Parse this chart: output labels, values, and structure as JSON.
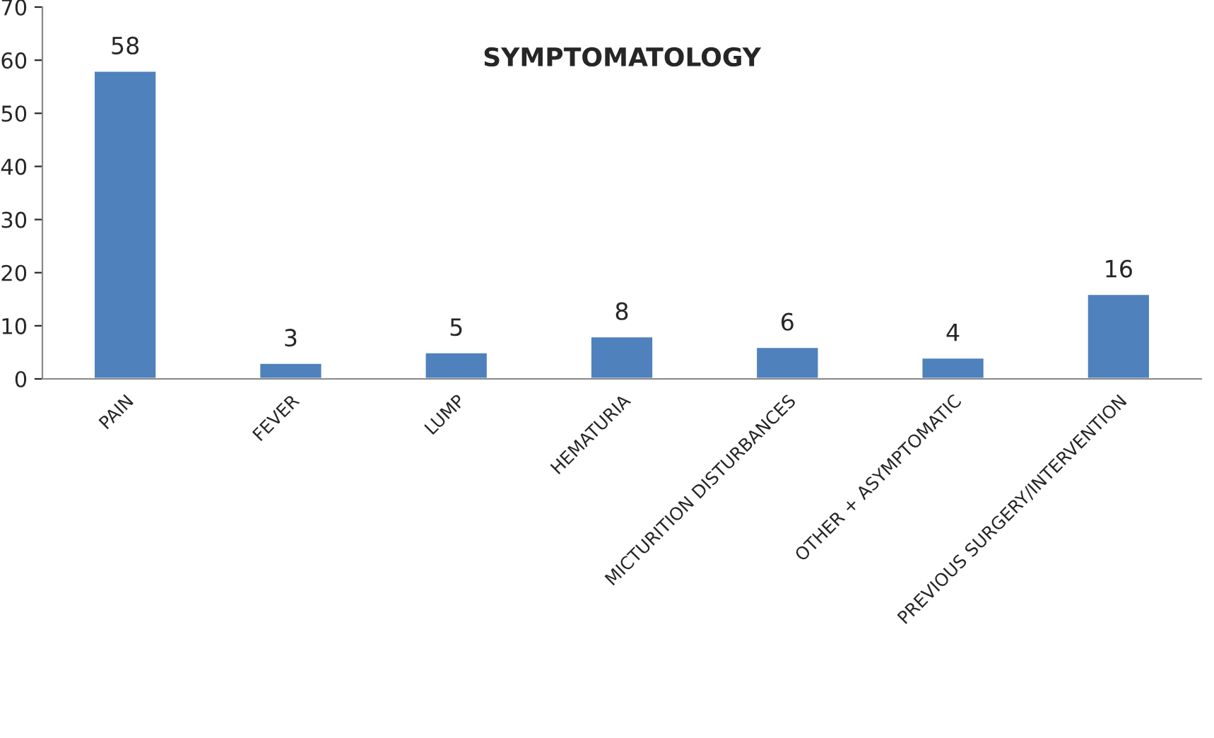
{
  "chart_data": {
    "type": "bar",
    "title": "SYMPTOMATOLOGY",
    "categories": [
      "PAIN",
      "FEVER",
      "LUMP",
      "HEMATURIA",
      "MICTURITION DISTURBANCES",
      "OTHER + ASYMPTOMATIC",
      "PREVIOUS SURGERY/INTERVENTION"
    ],
    "values": [
      58,
      3,
      5,
      8,
      6,
      4,
      16
    ],
    "color": "#4f81bd",
    "ylim": [
      0,
      70
    ],
    "yticks": [
      0,
      10,
      20,
      30,
      40,
      50,
      60,
      70
    ],
    "data_labels": true,
    "grid": false,
    "legend": false
  }
}
